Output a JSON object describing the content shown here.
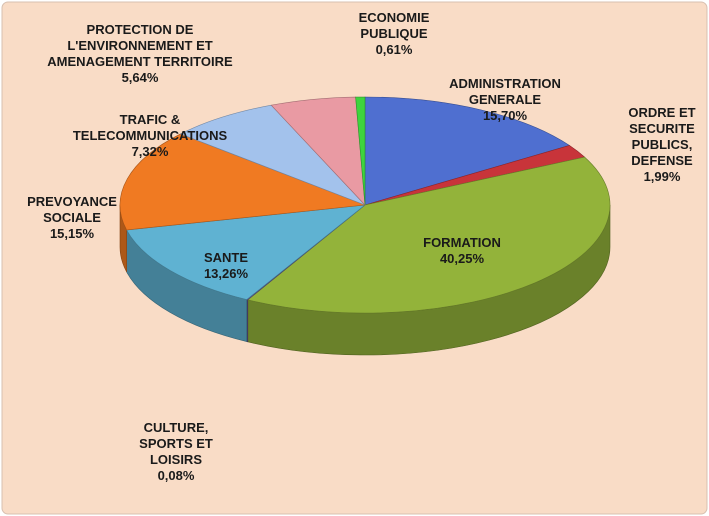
{
  "chart_data": {
    "type": "pie",
    "categories": [
      "ADMINISTRATION\nGENERALE",
      "ORDRE ET\nSECURITE\nPUBLICS,\nDEFENSE",
      "FORMATION",
      "CULTURE,\nSPORTS ET\nLOISIRS",
      "SANTE",
      "PREVOYANCE\nSOCIALE",
      "TRAFIC &\nTELECOMMUNICATIONS",
      "PROTECTION DE\nL'ENVIRONNEMENT ET\nAMENAGEMENT TERRITOIRE",
      "ECONOMIE\nPUBLIQUE"
    ],
    "values": [
      15.7,
      1.99,
      40.25,
      0.08,
      13.26,
      15.15,
      7.32,
      5.64,
      0.61
    ],
    "value_labels": [
      "15,70%",
      "1,99%",
      "40,25%",
      "0,08%",
      "13,26%",
      "15,15%",
      "7,32%",
      "5,64%",
      "0,61%"
    ],
    "colors": [
      "#4f6fd0",
      "#c8343a",
      "#93b33a",
      "#6a5c98",
      "#5fb2d2",
      "#f07a22",
      "#a3c2ec",
      "#e99aa3",
      "#3ed43e"
    ]
  }
}
